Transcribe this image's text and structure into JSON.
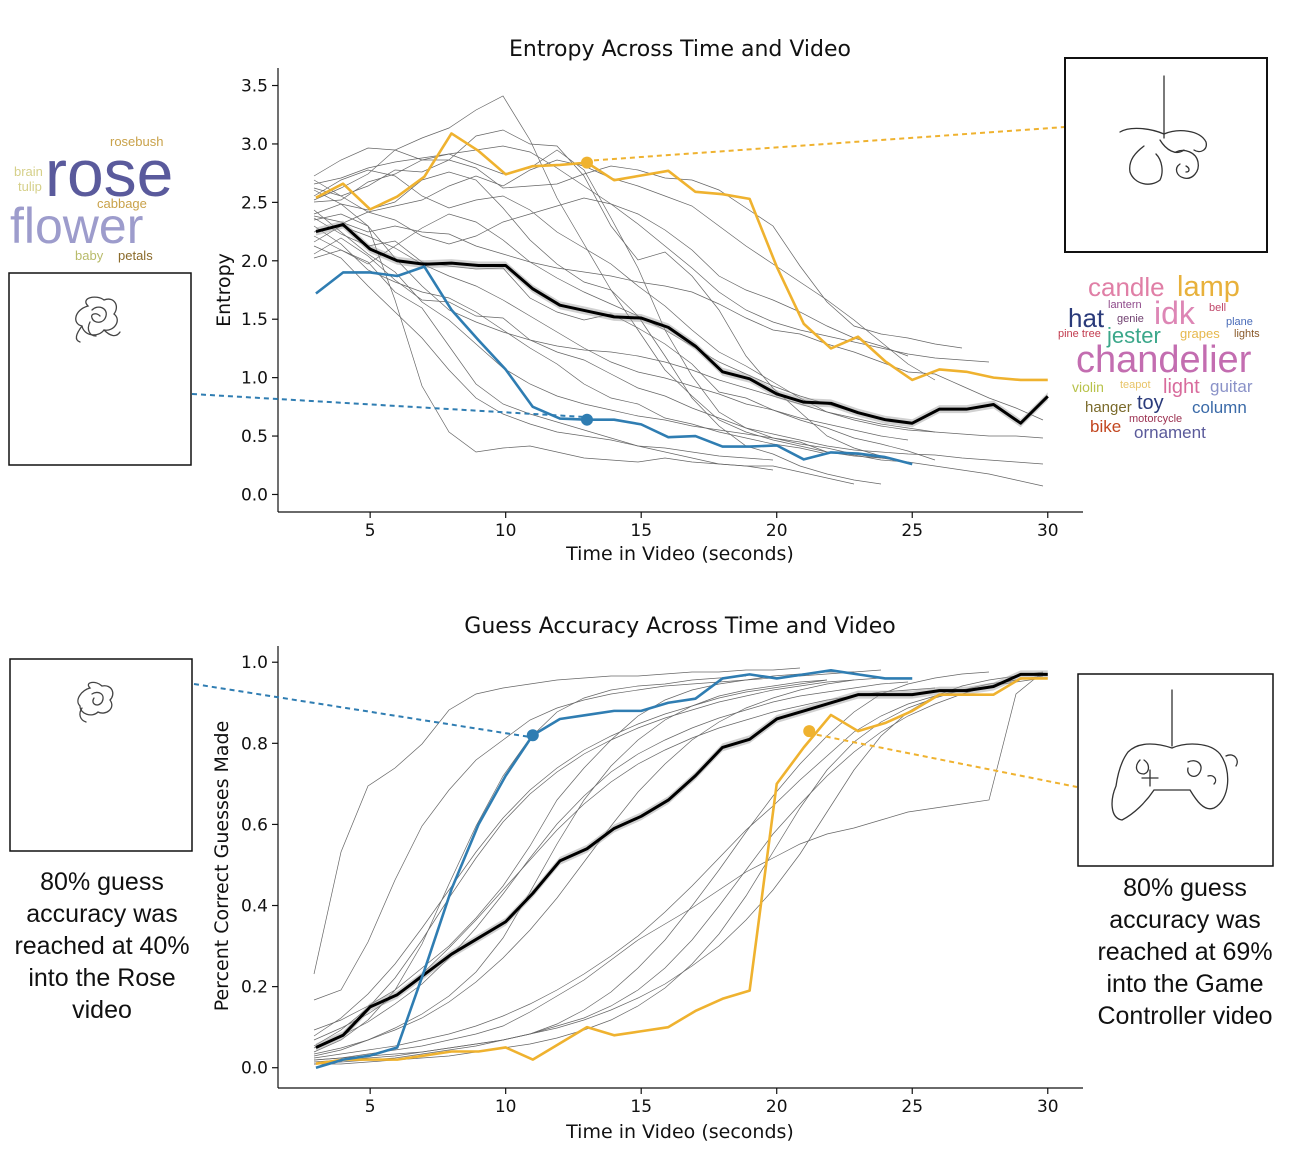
{
  "chart_data": [
    {
      "type": "line",
      "title": "Entropy Across Time and Video",
      "xlabel": "Time in Video (seconds)",
      "ylabel": "Entropy",
      "xlim": [
        1.6,
        31.3
      ],
      "ylim": [
        -0.15,
        3.65
      ],
      "xticks": [
        5,
        10,
        15,
        20,
        25,
        30
      ],
      "yticks": [
        0.0,
        0.5,
        1.0,
        1.5,
        2.0,
        2.5,
        3.0,
        3.5
      ],
      "tick_format": 1,
      "grid": false,
      "series": [
        {
          "role": "mean",
          "color": "#000000",
          "x": [
            3,
            4,
            5,
            6,
            7,
            8,
            9,
            10,
            11,
            12,
            13,
            14,
            15,
            16,
            17,
            18,
            19,
            20,
            21,
            22,
            23,
            24,
            25,
            26,
            27,
            28,
            29,
            30
          ],
          "y": [
            2.25,
            2.31,
            2.1,
            2.0,
            1.97,
            1.98,
            1.96,
            1.96,
            1.76,
            1.62,
            1.57,
            1.52,
            1.51,
            1.43,
            1.27,
            1.05,
            0.99,
            0.86,
            0.79,
            0.78,
            0.7,
            0.64,
            0.61,
            0.73,
            0.73,
            0.77,
            0.61,
            0.84
          ]
        },
        {
          "role": "highlight",
          "color": "#efb22f",
          "x": [
            3,
            4,
            5,
            6,
            7,
            8,
            9,
            10,
            11,
            12,
            13,
            14,
            15,
            16,
            17,
            18,
            19,
            20,
            21,
            22,
            23,
            24,
            25,
            26,
            27,
            28,
            29,
            30
          ],
          "y": [
            2.54,
            2.66,
            2.44,
            2.55,
            2.72,
            3.09,
            2.94,
            2.74,
            2.81,
            2.82,
            2.84,
            2.69,
            2.73,
            2.77,
            2.59,
            2.57,
            2.53,
            1.95,
            1.46,
            1.25,
            1.35,
            1.14,
            0.98,
            1.07,
            1.05,
            1.0,
            0.98,
            0.98
          ]
        },
        {
          "role": "highlight",
          "color": "#2f7db2",
          "x": [
            3,
            4,
            5,
            6,
            7,
            8,
            9,
            10,
            11,
            12,
            13,
            14,
            15,
            16,
            17,
            18,
            19,
            20,
            21,
            22,
            23,
            24,
            25
          ],
          "y": [
            1.72,
            1.9,
            1.9,
            1.87,
            1.95,
            1.58,
            1.32,
            1.07,
            0.75,
            0.65,
            0.64,
            0.64,
            0.6,
            0.49,
            0.5,
            0.41,
            0.41,
            0.42,
            0.3,
            0.36,
            0.35,
            0.32,
            0.26
          ]
        }
      ],
      "markers": [
        {
          "x": 13,
          "y": 2.84,
          "color": "#efb22f"
        },
        {
          "x": 13,
          "y": 0.64,
          "color": "#2f7db2"
        }
      ]
    },
    {
      "type": "line",
      "title": "Guess Accuracy Across Time and Video",
      "xlabel": "Time in Video (seconds)",
      "ylabel": "Percent Correct Guesses Made",
      "xlim": [
        1.6,
        31.3
      ],
      "ylim": [
        -0.05,
        1.04
      ],
      "xticks": [
        5,
        10,
        15,
        20,
        25,
        30
      ],
      "yticks": [
        0.0,
        0.2,
        0.4,
        0.6,
        0.8,
        1.0
      ],
      "tick_format": 1,
      "grid": false,
      "series": [
        {
          "role": "mean",
          "color": "#000000",
          "x": [
            3,
            4,
            5,
            6,
            7,
            8,
            9,
            10,
            11,
            12,
            13,
            14,
            15,
            16,
            17,
            18,
            19,
            20,
            21,
            22,
            23,
            24,
            25,
            26,
            27,
            28,
            29,
            30
          ],
          "y": [
            0.05,
            0.08,
            0.15,
            0.18,
            0.23,
            0.28,
            0.32,
            0.36,
            0.43,
            0.51,
            0.54,
            0.59,
            0.62,
            0.66,
            0.72,
            0.79,
            0.81,
            0.86,
            0.88,
            0.9,
            0.92,
            0.92,
            0.92,
            0.93,
            0.93,
            0.94,
            0.97,
            0.97
          ]
        },
        {
          "role": "highlight",
          "color": "#efb22f",
          "x": [
            3,
            4,
            5,
            6,
            7,
            8,
            9,
            10,
            11,
            12,
            13,
            14,
            15,
            16,
            17,
            18,
            19,
            20,
            21,
            22,
            23,
            24,
            25,
            26,
            27,
            28,
            29,
            30
          ],
          "y": [
            0.01,
            0.02,
            0.02,
            0.02,
            0.03,
            0.04,
            0.04,
            0.05,
            0.02,
            0.06,
            0.1,
            0.08,
            0.09,
            0.1,
            0.14,
            0.17,
            0.19,
            0.7,
            0.79,
            0.87,
            0.83,
            0.85,
            0.88,
            0.92,
            0.92,
            0.92,
            0.96,
            0.96
          ]
        },
        {
          "role": "highlight",
          "color": "#2f7db2",
          "x": [
            3,
            4,
            5,
            6,
            7,
            8,
            9,
            10,
            11,
            12,
            13,
            14,
            15,
            16,
            17,
            18,
            19,
            20,
            21,
            22,
            23,
            24,
            25
          ],
          "y": [
            0.0,
            0.02,
            0.03,
            0.05,
            0.24,
            0.44,
            0.6,
            0.72,
            0.82,
            0.86,
            0.87,
            0.88,
            0.88,
            0.9,
            0.91,
            0.96,
            0.97,
            0.96,
            0.97,
            0.98,
            0.97,
            0.96,
            0.96
          ]
        }
      ],
      "markers": [
        {
          "x": 11,
          "y": 0.82,
          "color": "#2f7db2"
        },
        {
          "x": 21.2,
          "y": 0.83,
          "color": "#efb22f"
        }
      ]
    }
  ],
  "wordclouds": {
    "rose": {
      "words": [
        {
          "text": "rosebush",
          "color": "#c9a24a"
        },
        {
          "text": "brain",
          "color": "#d6d08a"
        },
        {
          "text": "tulip",
          "color": "#d6d08a"
        },
        {
          "text": "rose",
          "color": "#5a5a9c"
        },
        {
          "text": "cabbage",
          "color": "#c9a24a"
        },
        {
          "text": "flower",
          "color": "#9d9ccc"
        },
        {
          "text": "baby",
          "color": "#b8bb6a"
        },
        {
          "text": "petals",
          "color": "#8a6a2a"
        }
      ]
    },
    "chandelier": {
      "words": [
        {
          "text": "candle",
          "color": "#e07fa6"
        },
        {
          "text": "lamp",
          "color": "#e8b13b"
        },
        {
          "text": "lantern",
          "color": "#8f4a8a"
        },
        {
          "text": "hat",
          "color": "#2a3a7a"
        },
        {
          "text": "genie",
          "color": "#6f3f6f"
        },
        {
          "text": "idk",
          "color": "#dd86b5"
        },
        {
          "text": "bell",
          "color": "#c0476a"
        },
        {
          "text": "plane",
          "color": "#4a6cb8"
        },
        {
          "text": "pine tree",
          "color": "#c23b4e"
        },
        {
          "text": "jester",
          "color": "#3ba78a"
        },
        {
          "text": "grapes",
          "color": "#e6b84c"
        },
        {
          "text": "lights",
          "color": "#8a5a2a"
        },
        {
          "text": "chandelier",
          "color": "#c36db0"
        },
        {
          "text": "violin",
          "color": "#b8c24a"
        },
        {
          "text": "teapot",
          "color": "#e8c468"
        },
        {
          "text": "light",
          "color": "#d86b9c"
        },
        {
          "text": "guitar",
          "color": "#8a92c8"
        },
        {
          "text": "hanger",
          "color": "#7a6a2a"
        },
        {
          "text": "toy",
          "color": "#2a3a7a"
        },
        {
          "text": "motorcycle",
          "color": "#9b3050"
        },
        {
          "text": "column",
          "color": "#3a6aa8"
        },
        {
          "text": "bike",
          "color": "#c2451e"
        },
        {
          "text": "ornament",
          "color": "#5a5a9a"
        }
      ]
    }
  },
  "annotations": {
    "rose_note": [
      "80% guess",
      "accuracy was",
      "reached at 40%",
      "into the Rose",
      "video"
    ],
    "controller_note": [
      "80% guess",
      "accuracy was",
      "reached at 69%",
      "into the Game",
      "Controller video"
    ]
  }
}
